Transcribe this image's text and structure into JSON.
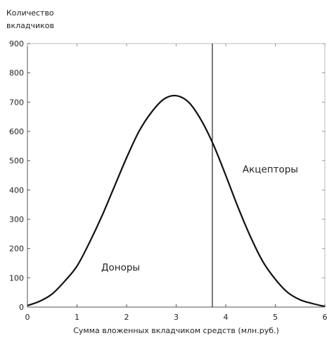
{
  "chart_data": {
    "type": "line",
    "title": "",
    "ylabel_lines": [
      "Количество",
      "вкладчиков"
    ],
    "xlabel": "Сумма вложенных вкладчиком средств (млн.руб.)",
    "xlim": [
      0,
      6
    ],
    "ylim": [
      0,
      900
    ],
    "xticks": [
      0,
      1,
      2,
      3,
      4,
      5,
      6
    ],
    "yticks": [
      0,
      100,
      200,
      300,
      400,
      500,
      600,
      700,
      800,
      900
    ],
    "grid": false,
    "series": [
      {
        "x": [
          0,
          0.25,
          0.5,
          0.75,
          1.0,
          1.25,
          1.5,
          1.75,
          2.0,
          2.25,
          2.5,
          2.75,
          3.0,
          3.25,
          3.5,
          3.75,
          4.0,
          4.25,
          4.5,
          4.75,
          5.0,
          5.25,
          5.5,
          5.75,
          6.0
        ],
        "y": [
          5,
          20,
          45,
          88,
          140,
          220,
          310,
          410,
          510,
          600,
          665,
          710,
          722,
          700,
          640,
          555,
          450,
          340,
          240,
          155,
          95,
          50,
          25,
          12,
          2
        ],
        "color": "#111111"
      }
    ],
    "vline": {
      "x": 3.73,
      "color": "#111111"
    },
    "annotations": [
      {
        "text": "Доноры",
        "x": 1.88,
        "y": 125
      },
      {
        "text": "Акцепторы",
        "x": 4.9,
        "y": 460
      }
    ]
  }
}
